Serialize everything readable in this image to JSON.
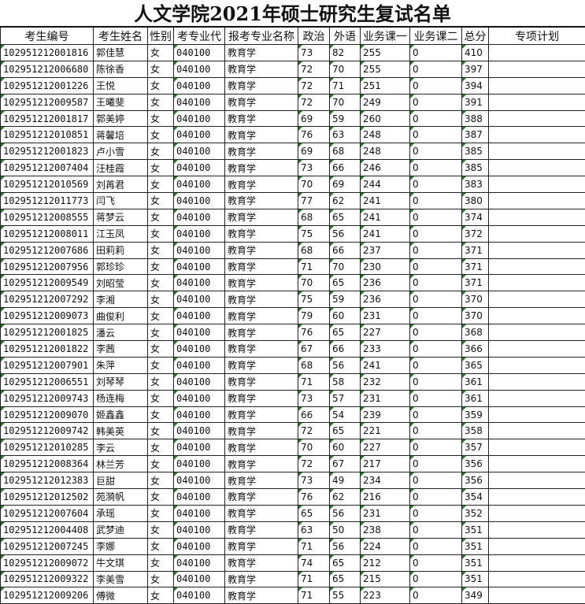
{
  "title": "人文学院2021年硕士研究生复试名单",
  "headers": [
    "考生编号",
    "考生姓名",
    "性别",
    "考专业代",
    "报考专业名称",
    "政治",
    "外语",
    "业务课一",
    "业务课二",
    "总分",
    "专项计划"
  ],
  "rows": [
    [
      "102951212001816",
      "郭佳慧",
      "女",
      "040100",
      "教育学",
      "73",
      "82",
      "255",
      "0",
      "410",
      ""
    ],
    [
      "102951212006680",
      "陈徐香",
      "女",
      "040100",
      "教育学",
      "72",
      "70",
      "255",
      "0",
      "397",
      ""
    ],
    [
      "102951212001226",
      "王悦",
      "女",
      "040100",
      "教育学",
      "72",
      "71",
      "251",
      "0",
      "394",
      ""
    ],
    [
      "102951212009587",
      "王曦斐",
      "女",
      "040100",
      "教育学",
      "72",
      "70",
      "249",
      "0",
      "391",
      ""
    ],
    [
      "102951212001817",
      "郭美婷",
      "女",
      "040100",
      "教育学",
      "69",
      "59",
      "260",
      "0",
      "388",
      ""
    ],
    [
      "102951212010851",
      "蒋馨培",
      "女",
      "040100",
      "教育学",
      "76",
      "63",
      "248",
      "0",
      "387",
      ""
    ],
    [
      "102951212001823",
      "卢小雪",
      "女",
      "040100",
      "教育学",
      "69",
      "68",
      "248",
      "0",
      "385",
      ""
    ],
    [
      "102951212007404",
      "汪桂霞",
      "女",
      "040100",
      "教育学",
      "73",
      "66",
      "246",
      "0",
      "385",
      ""
    ],
    [
      "102951212010569",
      "刘苒君",
      "女",
      "040100",
      "教育学",
      "70",
      "69",
      "244",
      "0",
      "383",
      ""
    ],
    [
      "102951212011773",
      "闫飞",
      "女",
      "040100",
      "教育学",
      "77",
      "62",
      "241",
      "0",
      "380",
      ""
    ],
    [
      "102951212008555",
      "蒋梦云",
      "女",
      "040100",
      "教育学",
      "68",
      "65",
      "241",
      "0",
      "374",
      ""
    ],
    [
      "102951212008011",
      "江玉凤",
      "女",
      "040100",
      "教育学",
      "75",
      "56",
      "241",
      "0",
      "372",
      ""
    ],
    [
      "102951212007686",
      "田莉莉",
      "女",
      "040100",
      "教育学",
      "68",
      "66",
      "237",
      "0",
      "371",
      ""
    ],
    [
      "102951212007956",
      "郭珍珍",
      "女",
      "040100",
      "教育学",
      "71",
      "70",
      "230",
      "0",
      "371",
      ""
    ],
    [
      "102951212009549",
      "刘昭莹",
      "女",
      "040100",
      "教育学",
      "70",
      "65",
      "236",
      "0",
      "371",
      ""
    ],
    [
      "102951212007292",
      "李湘",
      "女",
      "040100",
      "教育学",
      "75",
      "59",
      "236",
      "0",
      "370",
      ""
    ],
    [
      "102951212009073",
      "曲俊利",
      "女",
      "040100",
      "教育学",
      "79",
      "60",
      "231",
      "0",
      "370",
      ""
    ],
    [
      "102951212001825",
      "潘云",
      "女",
      "040100",
      "教育学",
      "76",
      "65",
      "227",
      "0",
      "368",
      ""
    ],
    [
      "102951212001822",
      "李茜",
      "女",
      "040100",
      "教育学",
      "67",
      "66",
      "233",
      "0",
      "366",
      ""
    ],
    [
      "102951212007901",
      "朱萍",
      "女",
      "040100",
      "教育学",
      "68",
      "56",
      "241",
      "0",
      "365",
      ""
    ],
    [
      "102951212006551",
      "刘琴琴",
      "女",
      "040100",
      "教育学",
      "71",
      "58",
      "232",
      "0",
      "361",
      ""
    ],
    [
      "102951212009743",
      "杨连梅",
      "女",
      "040100",
      "教育学",
      "73",
      "57",
      "231",
      "0",
      "361",
      ""
    ],
    [
      "102951212009070",
      "姬鑫鑫",
      "女",
      "040100",
      "教育学",
      "66",
      "54",
      "239",
      "0",
      "359",
      ""
    ],
    [
      "102951212009742",
      "韩美英",
      "女",
      "040100",
      "教育学",
      "72",
      "65",
      "221",
      "0",
      "358",
      ""
    ],
    [
      "102951212010285",
      "李云",
      "女",
      "040100",
      "教育学",
      "70",
      "60",
      "227",
      "0",
      "357",
      ""
    ],
    [
      "102951212008364",
      "林兰芳",
      "女",
      "040100",
      "教育学",
      "72",
      "67",
      "217",
      "0",
      "356",
      ""
    ],
    [
      "102951212012383",
      "巨甜",
      "女",
      "040100",
      "教育学",
      "73",
      "49",
      "234",
      "0",
      "356",
      ""
    ],
    [
      "102951212012502",
      "苑漪帆",
      "女",
      "040100",
      "教育学",
      "76",
      "62",
      "216",
      "0",
      "354",
      ""
    ],
    [
      "102951212007604",
      "承瑶",
      "女",
      "040100",
      "教育学",
      "65",
      "56",
      "231",
      "0",
      "352",
      ""
    ],
    [
      "102951212004408",
      "武梦迪",
      "女",
      "040100",
      "教育学",
      "63",
      "50",
      "238",
      "0",
      "351",
      ""
    ],
    [
      "102951212007245",
      "李娜",
      "女",
      "040100",
      "教育学",
      "71",
      "56",
      "224",
      "0",
      "351",
      ""
    ],
    [
      "102951212009072",
      "牛文琪",
      "女",
      "040100",
      "教育学",
      "74",
      "65",
      "212",
      "0",
      "351",
      ""
    ],
    [
      "102951212009322",
      "李美雪",
      "女",
      "040100",
      "教育学",
      "71",
      "65",
      "215",
      "0",
      "351",
      ""
    ],
    [
      "102951212009206",
      "傅微",
      "女",
      "040100",
      "教育学",
      "71",
      "55",
      "223",
      "0",
      "349",
      ""
    ]
  ]
}
